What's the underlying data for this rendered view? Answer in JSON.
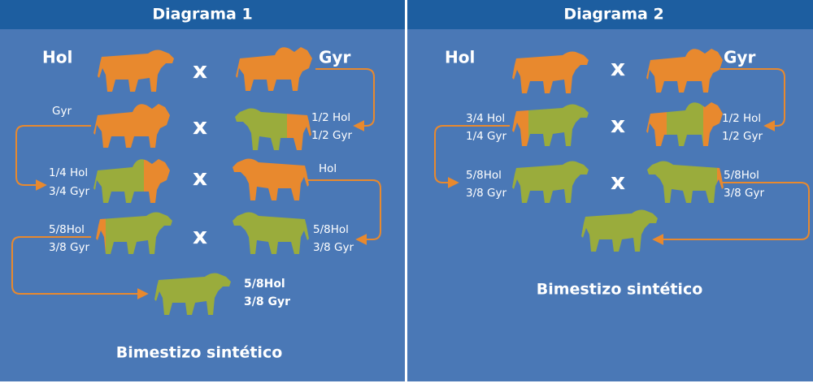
{
  "diagrams": [
    {
      "title": "Diagrama 1",
      "labels": [
        "Hol",
        "Gyr",
        "Gyr",
        "1/2 Hol",
        "1/2 Gyr",
        "1/4 Hol",
        "3/4 Gyr",
        "Hol",
        "5/8Hol",
        "3/8 Gyr",
        "5/8Hol",
        "3/8 Gyr",
        "5/8Hol",
        "3/8 Gyr"
      ],
      "crosses": [
        "x",
        "x",
        "x",
        "x"
      ],
      "result": "Bimestizo sintético"
    },
    {
      "title": "Diagrama 2",
      "labels": [
        "Hol",
        "Gyr",
        "3/4 Hol",
        "1/4 Gyr",
        "1/2 Hol",
        "1/2 Gyr",
        "5/8Hol",
        "3/8 Gyr",
        "5/8Hol",
        "3/8 Gyr"
      ],
      "crosses": [
        "x",
        "x",
        "x"
      ],
      "result": "Bimestizo sintético"
    }
  ]
}
